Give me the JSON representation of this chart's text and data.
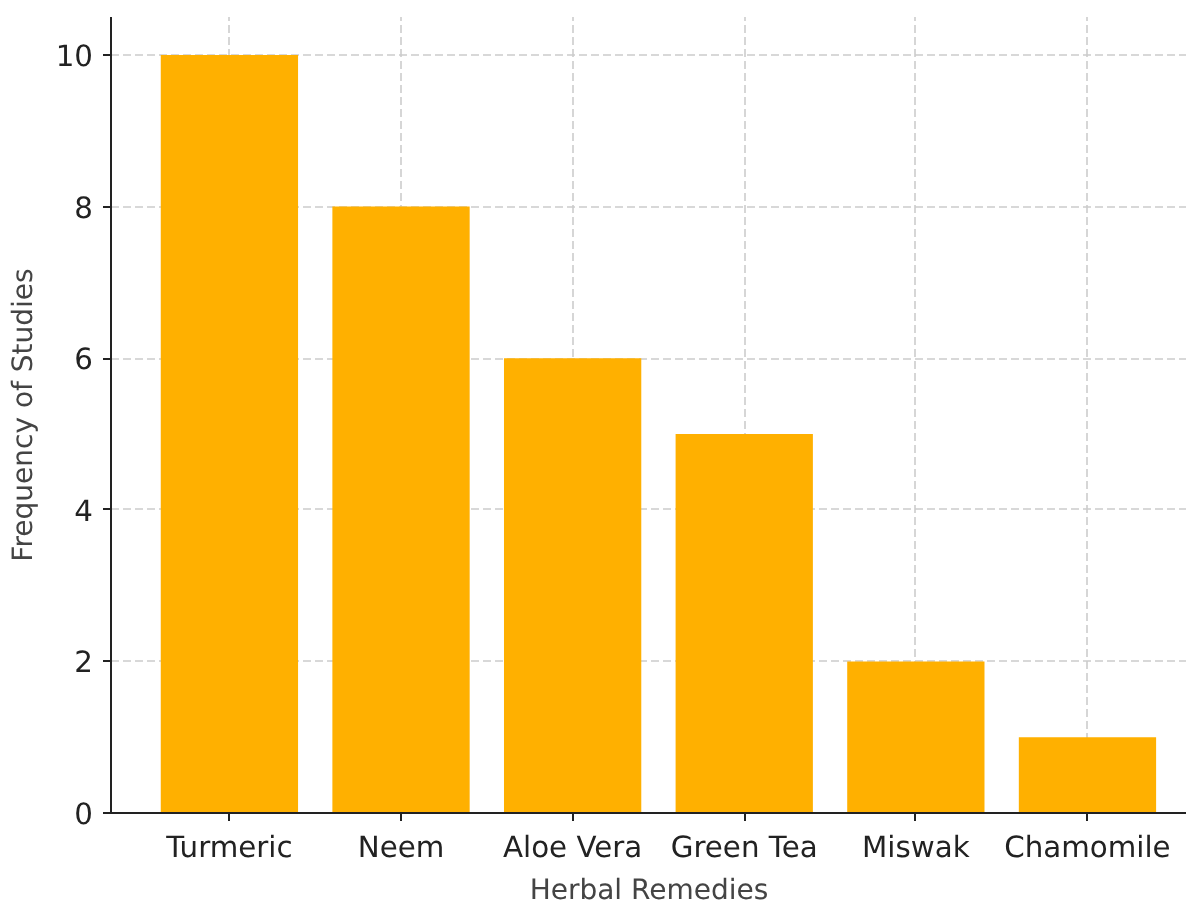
{
  "chart_data": {
    "type": "bar",
    "xlabel": "Herbal Remedies",
    "ylabel": "Frequency of Studies",
    "categories": [
      "Turmeric",
      "Neem",
      "Aloe Vera",
      "Green Tea",
      "Miswak",
      "Chamomile"
    ],
    "values": [
      10,
      8,
      6,
      5,
      2,
      1
    ],
    "color": "#ffb000",
    "ylim": [
      0,
      10.5
    ],
    "yticks": [
      0,
      2,
      4,
      6,
      8,
      10
    ],
    "grid": true
  }
}
